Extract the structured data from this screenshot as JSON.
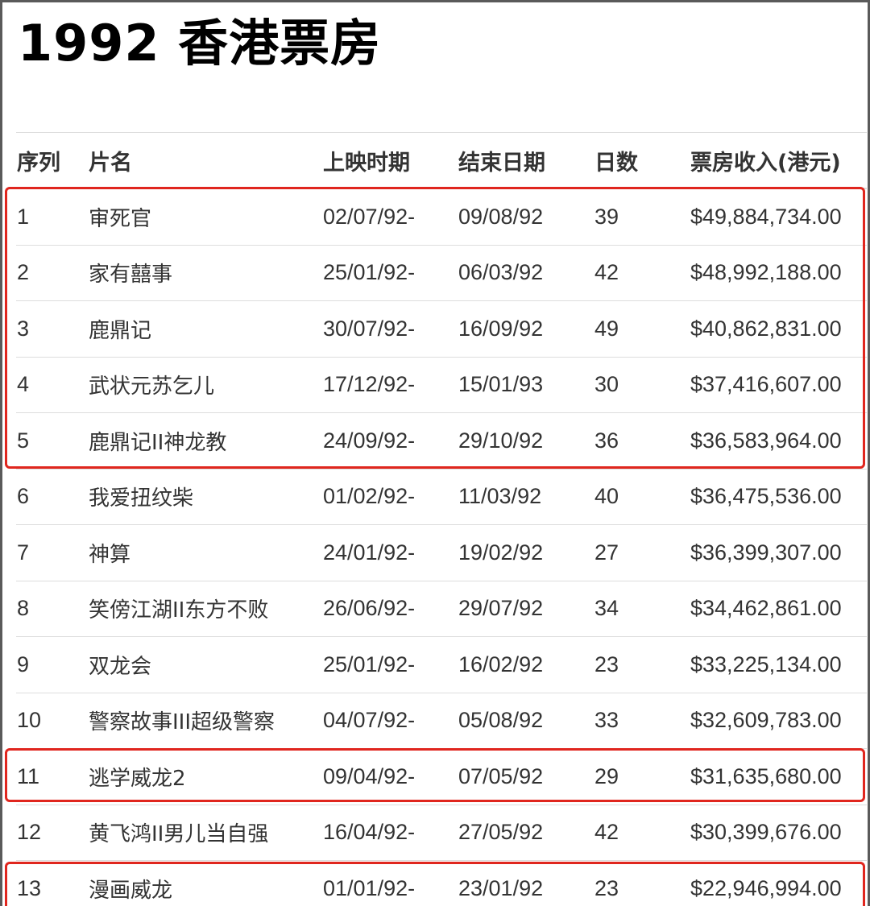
{
  "title": "1992 香港票房",
  "table": {
    "headers": [
      "序列",
      "片名",
      "上映时期",
      "结束日期",
      "日数",
      "票房收入(港元)"
    ],
    "rows": [
      [
        "1",
        "审死官",
        "02/07/92-",
        "09/08/92",
        "39",
        "$49,884,734.00"
      ],
      [
        "2",
        "家有囍事",
        "25/01/92-",
        "06/03/92",
        "42",
        "$48,992,188.00"
      ],
      [
        "3",
        "鹿鼎记",
        "30/07/92-",
        "16/09/92",
        "49",
        "$40,862,831.00"
      ],
      [
        "4",
        "武状元苏乞儿",
        "17/12/92-",
        "15/01/93",
        "30",
        "$37,416,607.00"
      ],
      [
        "5",
        "鹿鼎记II神龙教",
        "24/09/92-",
        "29/10/92",
        "36",
        "$36,583,964.00"
      ],
      [
        "6",
        "我爱扭纹柴",
        "01/02/92-",
        "11/03/92",
        "40",
        "$36,475,536.00"
      ],
      [
        "7",
        "神算",
        "24/01/92-",
        "19/02/92",
        "27",
        "$36,399,307.00"
      ],
      [
        "8",
        "笑傍江湖II东方不败",
        "26/06/92-",
        "29/07/92",
        "34",
        "$34,462,861.00"
      ],
      [
        "9",
        "双龙会",
        "25/01/92-",
        "16/02/92",
        "23",
        "$33,225,134.00"
      ],
      [
        "10",
        "警察故事III超级警察",
        "04/07/92-",
        "05/08/92",
        "33",
        "$32,609,783.00"
      ],
      [
        "11",
        "逃学威龙2",
        "09/04/92-",
        "07/05/92",
        "29",
        "$31,635,680.00"
      ],
      [
        "12",
        "黄飞鸿II男儿当自强",
        "16/04/92-",
        "27/05/92",
        "42",
        "$30,399,676.00"
      ],
      [
        "13",
        "漫画威龙",
        "01/01/92-",
        "23/01/92",
        "23",
        "$22,946,994.00"
      ]
    ]
  },
  "colors": {
    "highlight": "#e0261e",
    "text": "#333333",
    "rule": "#dddddd"
  }
}
